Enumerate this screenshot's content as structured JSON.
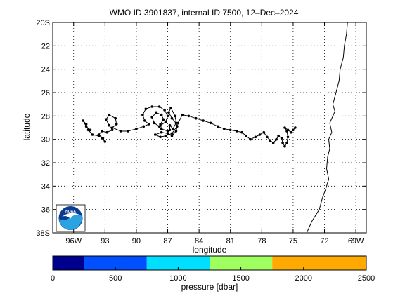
{
  "title": "WMO ID 3901837, internal ID 7500, 12–Dec–2024",
  "map": {
    "xlabel": "longitude",
    "ylabel": "latitude",
    "lon_range": [
      -98,
      -68
    ],
    "lat_range": [
      -38,
      -20
    ],
    "lon_ticks": [
      {
        "value": -96,
        "label": "96W"
      },
      {
        "value": -93,
        "label": "93"
      },
      {
        "value": -90,
        "label": "90"
      },
      {
        "value": -87,
        "label": "87"
      },
      {
        "value": -84,
        "label": "84"
      },
      {
        "value": -81,
        "label": "81"
      },
      {
        "value": -78,
        "label": "78"
      },
      {
        "value": -75,
        "label": "75"
      },
      {
        "value": -72,
        "label": "72"
      },
      {
        "value": -69,
        "label": "69W"
      }
    ],
    "lat_ticks": [
      {
        "value": -20,
        "label": "20S"
      },
      {
        "value": -22,
        "label": "22"
      },
      {
        "value": -24,
        "label": "24"
      },
      {
        "value": -26,
        "label": "26"
      },
      {
        "value": -28,
        "label": "28"
      },
      {
        "value": -30,
        "label": "30"
      },
      {
        "value": -32,
        "label": "32"
      },
      {
        "value": -34,
        "label": "34"
      },
      {
        "value": -36,
        "label": "36"
      },
      {
        "value": -38,
        "label": "38S"
      }
    ],
    "grid": "dotted",
    "logo_text": "NOAA",
    "coastline": [
      [
        -69.8,
        -20.0
      ],
      [
        -69.9,
        -21.0
      ],
      [
        -70.1,
        -22.0
      ],
      [
        -70.2,
        -23.0
      ],
      [
        -70.5,
        -24.0
      ],
      [
        -70.6,
        -25.0
      ],
      [
        -70.9,
        -26.0
      ],
      [
        -71.2,
        -27.0
      ],
      [
        -71.0,
        -27.6
      ],
      [
        -71.5,
        -28.6
      ],
      [
        -71.3,
        -29.4
      ],
      [
        -71.6,
        -30.0
      ],
      [
        -71.5,
        -30.8
      ],
      [
        -71.7,
        -31.5
      ],
      [
        -71.8,
        -32.5
      ],
      [
        -71.6,
        -33.4
      ],
      [
        -71.9,
        -34.3
      ],
      [
        -72.2,
        -35.0
      ],
      [
        -72.5,
        -36.0
      ],
      [
        -73.2,
        -37.0
      ],
      [
        -73.5,
        -37.6
      ],
      [
        -73.7,
        -38.0
      ]
    ],
    "track": [
      [
        -94.4,
        -29.2
      ],
      [
        -94.8,
        -28.9
      ],
      [
        -95.1,
        -28.4
      ],
      [
        -94.8,
        -28.7
      ],
      [
        -94.6,
        -29.2
      ],
      [
        -94.2,
        -29.6
      ],
      [
        -93.6,
        -29.7
      ],
      [
        -93.3,
        -29.9
      ],
      [
        -93.0,
        -30.2
      ],
      [
        -93.2,
        -29.9
      ],
      [
        -93.6,
        -29.6
      ],
      [
        -93.3,
        -29.3
      ],
      [
        -92.8,
        -29.4
      ],
      [
        -92.3,
        -29.2
      ],
      [
        -92.6,
        -28.8
      ],
      [
        -92.9,
        -28.3
      ],
      [
        -92.6,
        -27.9
      ],
      [
        -92.0,
        -28.2
      ],
      [
        -91.9,
        -28.7
      ],
      [
        -92.3,
        -29.0
      ],
      [
        -91.5,
        -29.3
      ],
      [
        -90.8,
        -29.3
      ],
      [
        -90.0,
        -29.1
      ],
      [
        -89.3,
        -28.9
      ],
      [
        -88.8,
        -28.7
      ],
      [
        -89.2,
        -28.4
      ],
      [
        -89.4,
        -27.9
      ],
      [
        -89.1,
        -27.4
      ],
      [
        -88.5,
        -27.2
      ],
      [
        -87.8,
        -27.2
      ],
      [
        -87.3,
        -27.5
      ],
      [
        -87.0,
        -28.0
      ],
      [
        -87.2,
        -28.5
      ],
      [
        -87.8,
        -28.9
      ],
      [
        -88.3,
        -28.6
      ],
      [
        -88.5,
        -28.1
      ],
      [
        -88.1,
        -27.7
      ],
      [
        -87.6,
        -27.9
      ],
      [
        -87.4,
        -28.3
      ],
      [
        -87.7,
        -28.7
      ],
      [
        -87.6,
        -29.1
      ],
      [
        -87.0,
        -29.3
      ],
      [
        -86.8,
        -29.2
      ],
      [
        -86.8,
        -28.8
      ],
      [
        -86.5,
        -29.1
      ],
      [
        -86.2,
        -28.6
      ],
      [
        -86.6,
        -28.2
      ],
      [
        -86.9,
        -27.7
      ],
      [
        -86.7,
        -27.3
      ],
      [
        -86.3,
        -28.0
      ],
      [
        -86.1,
        -28.9
      ],
      [
        -86.6,
        -29.5
      ],
      [
        -87.2,
        -29.7
      ],
      [
        -87.7,
        -29.8
      ],
      [
        -88.2,
        -29.6
      ],
      [
        -87.6,
        -29.4
      ],
      [
        -87.0,
        -29.5
      ],
      [
        -86.6,
        -29.7
      ],
      [
        -86.2,
        -29.3
      ],
      [
        -86.0,
        -28.6
      ],
      [
        -85.6,
        -27.9
      ],
      [
        -85.0,
        -28.0
      ],
      [
        -84.3,
        -28.2
      ],
      [
        -83.6,
        -28.4
      ],
      [
        -82.9,
        -28.6
      ],
      [
        -82.2,
        -28.9
      ],
      [
        -81.6,
        -29.1
      ],
      [
        -81.0,
        -29.2
      ],
      [
        -80.4,
        -29.3
      ],
      [
        -79.9,
        -29.4
      ],
      [
        -79.5,
        -29.7
      ],
      [
        -79.1,
        -30.0
      ],
      [
        -78.6,
        -29.8
      ],
      [
        -78.2,
        -29.6
      ],
      [
        -77.8,
        -29.4
      ],
      [
        -77.5,
        -29.8
      ],
      [
        -77.2,
        -30.1
      ],
      [
        -76.9,
        -30.3
      ],
      [
        -76.6,
        -30.0
      ],
      [
        -76.4,
        -29.7
      ],
      [
        -76.1,
        -29.9
      ],
      [
        -76.0,
        -30.3
      ],
      [
        -75.8,
        -30.6
      ],
      [
        -75.6,
        -30.3
      ],
      [
        -75.5,
        -29.8
      ],
      [
        -75.6,
        -29.3
      ],
      [
        -75.8,
        -29.0
      ],
      [
        -75.5,
        -29.2
      ],
      [
        -75.2,
        -29.4
      ],
      [
        -75.0,
        -29.2
      ],
      [
        -74.8,
        -29.0
      ]
    ]
  },
  "colorbar": {
    "label": "pressure [dbar]",
    "range": [
      0,
      2500
    ],
    "ticks": [
      {
        "value": 0,
        "label": "0"
      },
      {
        "value": 500,
        "label": "500"
      },
      {
        "value": 1000,
        "label": "1000"
      },
      {
        "value": 1500,
        "label": "1500"
      },
      {
        "value": 2000,
        "label": "2000"
      },
      {
        "value": 2500,
        "label": "2500"
      }
    ],
    "bins": [
      {
        "from": 0,
        "to": 250,
        "color": "#00008f"
      },
      {
        "from": 250,
        "to": 750,
        "color": "#0050ff"
      },
      {
        "from": 750,
        "to": 1250,
        "color": "#00dfff"
      },
      {
        "from": 1250,
        "to": 1750,
        "color": "#9fff60"
      },
      {
        "from": 1750,
        "to": 2250,
        "color": "#ffaa00"
      },
      {
        "from": 2250,
        "to": 2500,
        "color": "#ffaa00"
      }
    ]
  }
}
